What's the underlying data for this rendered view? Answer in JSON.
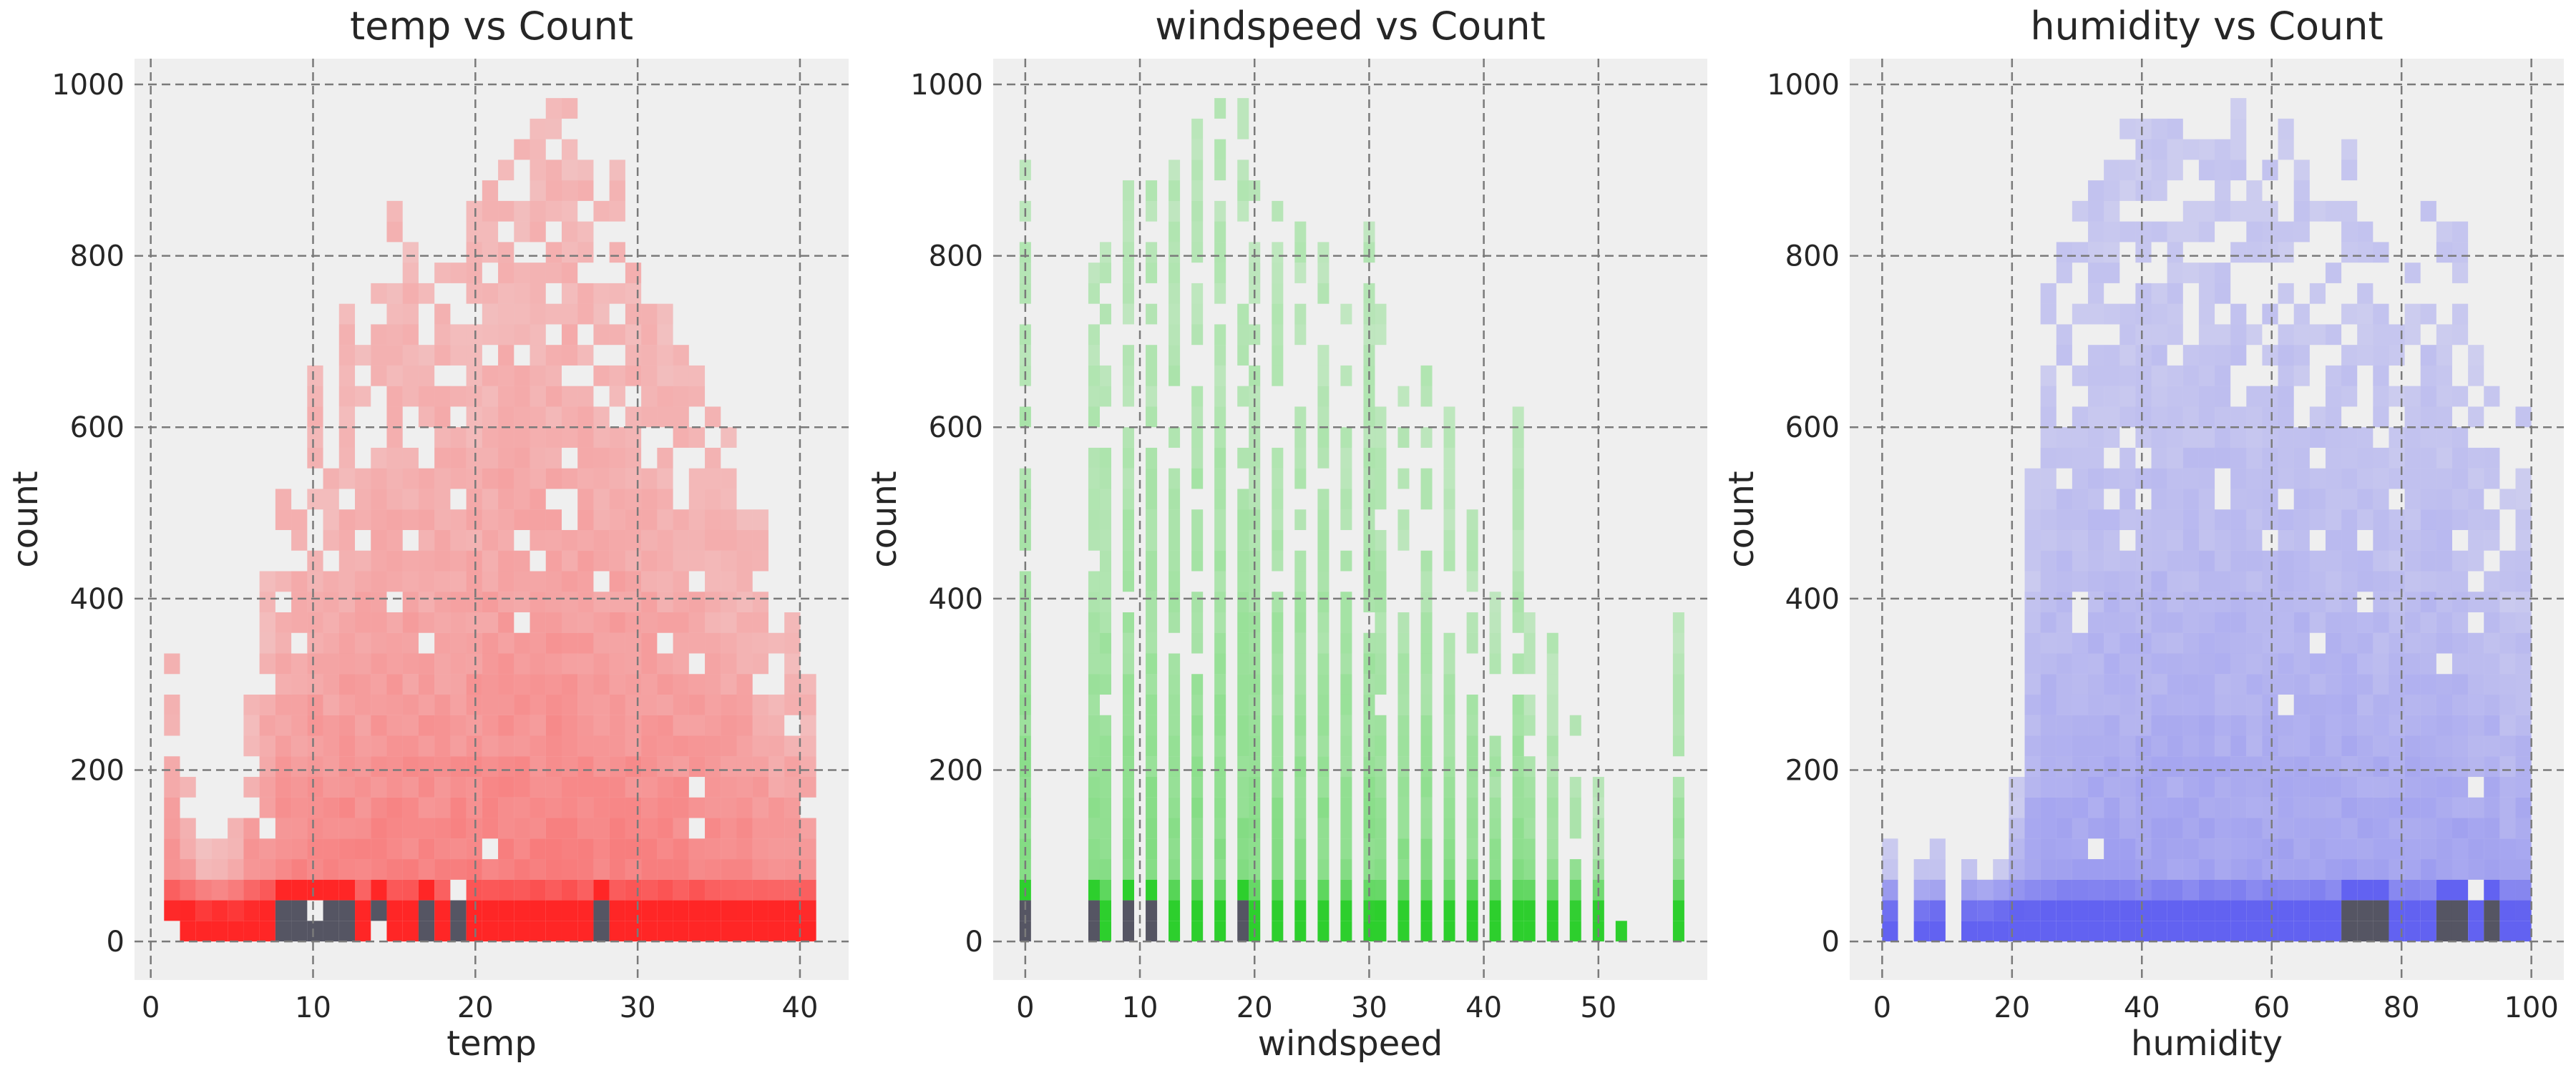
{
  "colors": {
    "background": "#efefef",
    "grid": "#7a7a7a",
    "temp": "#ff1a1a",
    "windspeed": "#22cc22",
    "humidity": "#5a5af0",
    "dark_bin": "#3a3a4a"
  },
  "chart_data": [
    {
      "type": "heatmap",
      "subtype": "2d-histogram",
      "title": "temp vs Count",
      "xlabel": "temp",
      "ylabel": "count",
      "xlim": [
        -1,
        43
      ],
      "ylim": [
        -45,
        1030
      ],
      "xticks": [
        0,
        10,
        20,
        30,
        40
      ],
      "yticks": [
        0,
        200,
        400,
        600,
        800,
        1000
      ],
      "grid": true,
      "color": "#ff1a1a",
      "x_range_data": [
        0.82,
        41.0
      ],
      "y_max_by_column": [
        320,
        190,
        100,
        100,
        120,
        300,
        420,
        520,
        560,
        650,
        560,
        720,
        700,
        760,
        840,
        800,
        760,
        790,
        800,
        850,
        870,
        970,
        930,
        950,
        970,
        970,
        900,
        860,
        900,
        780,
        760,
        720,
        700,
        680,
        600,
        580,
        540,
        480,
        400,
        380,
        300
      ],
      "density_hotspots_x": [
        8.2,
        9.8,
        11.5,
        13.9,
        17.2,
        18.9,
        27.9
      ],
      "notes": "count (0-977) plotted against temperature; density strongest near count 0-100"
    },
    {
      "type": "heatmap",
      "subtype": "2d-histogram",
      "title": "windspeed vs Count",
      "xlabel": "windspeed",
      "ylabel": "count",
      "xlim": [
        -2.8,
        59.5
      ],
      "ylim": [
        -45,
        1030
      ],
      "xticks": [
        0,
        10,
        20,
        30,
        40,
        50
      ],
      "yticks": [
        0,
        200,
        400,
        600,
        800,
        1000
      ],
      "grid": true,
      "color": "#22cc22",
      "x_values": [
        0,
        6.0,
        7.0,
        8.998,
        11.001,
        12.998,
        15.001,
        16.998,
        19.001,
        19.999,
        22.003,
        23.999,
        26.003,
        27.999,
        30.003,
        31.001,
        32.998,
        35.001,
        36.998,
        39.001,
        40.998,
        43.001,
        43.999,
        46.002,
        47.999,
        50.002,
        51.999,
        56.997
      ],
      "y_max_by_value": [
        970,
        800,
        800,
        880,
        910,
        950,
        950,
        970,
        970,
        880,
        840,
        820,
        800,
        740,
        830,
        740,
        640,
        660,
        600,
        500,
        420,
        600,
        360,
        340,
        280,
        180,
        20,
        370
      ],
      "density_hotspots_x": [
        0,
        6.0,
        8.998,
        11.001,
        19.001
      ]
    },
    {
      "type": "heatmap",
      "subtype": "2d-histogram",
      "title": "humidity vs Count",
      "xlabel": "humidity",
      "ylabel": "count",
      "xlim": [
        -5,
        105
      ],
      "ylim": [
        -45,
        1030
      ],
      "xticks": [
        0,
        20,
        40,
        60,
        80,
        100
      ],
      "yticks": [
        0,
        200,
        400,
        600,
        800,
        1000
      ],
      "grid": true,
      "color": "#5a5af0",
      "x_range_data": [
        0,
        100
      ],
      "y_max_by_column": [
        120,
        0,
        80,
        100,
        0,
        120,
        80,
        90,
        190,
        580,
        770,
        820,
        850,
        880,
        930,
        960,
        940,
        970,
        940,
        930,
        950,
        970,
        960,
        880,
        900,
        950,
        900,
        880,
        860,
        920,
        850,
        800,
        720,
        780,
        880,
        850,
        820,
        680,
        720,
        520,
        600
      ],
      "density_hotspots_x": [
        73,
        76,
        88,
        94
      ]
    }
  ]
}
